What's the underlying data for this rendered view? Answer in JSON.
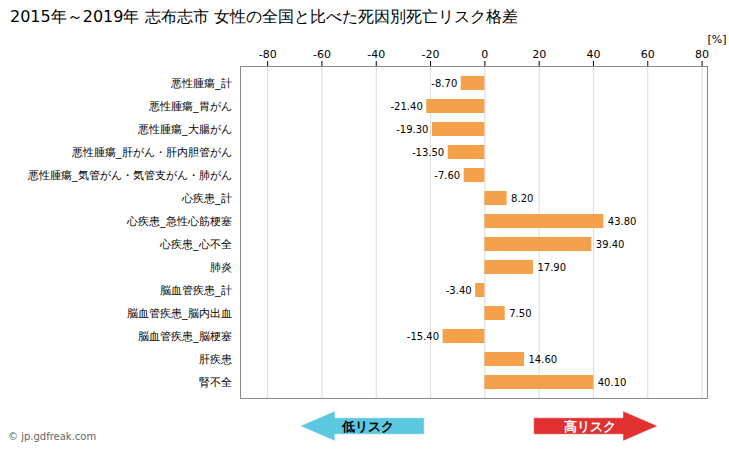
{
  "chart_data": {
    "type": "bar",
    "orientation": "horizontal",
    "title": "2015年～2019年 志布志市 女性の全国と比べた死因別死亡リスク格差",
    "xlabel": "[%]",
    "caption": "© jp.gdfreak.com",
    "categories": [
      "悪性腫瘍_計",
      "悪性腫瘍_胃がん",
      "悪性腫瘍_大腸がん",
      "悪性腫瘍_肝がん・肝内胆管がん",
      "悪性腫瘍_気管がん・気管支がん・肺がん",
      "心疾患_計",
      "心疾患_急性心筋梗塞",
      "心疾患_心不全",
      "肺炎",
      "脳血管疾患_計",
      "脳血管疾患_脳内出血",
      "脳血管疾患_脳梗塞",
      "肝疾患",
      "腎不全"
    ],
    "values": [
      -8.7,
      -21.4,
      -19.3,
      -13.5,
      -7.6,
      8.2,
      43.8,
      39.4,
      17.9,
      -3.4,
      7.5,
      -15.4,
      14.6,
      40.1
    ],
    "value_labels": [
      "-8.70",
      "-21.40",
      "-19.30",
      "-13.50",
      "-7.60",
      "8.20",
      "43.80",
      "39.40",
      "17.90",
      "-3.40",
      "7.50",
      "-15.40",
      "14.60",
      "40.10"
    ],
    "color": "#F5A04B",
    "xlim": [
      -90,
      82
    ],
    "xticks": [
      -80,
      -60,
      -40,
      -20,
      0,
      20,
      40,
      60,
      80
    ],
    "grid": true,
    "data_labels": true,
    "annotations": [
      {
        "text": "低リスク",
        "color": "#5BC8E0"
      },
      {
        "text": "高リスク",
        "color": "#E03030"
      }
    ]
  }
}
